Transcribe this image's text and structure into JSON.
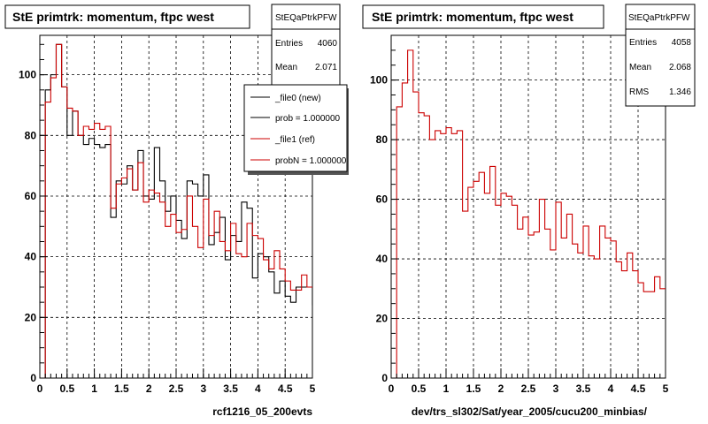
{
  "chart_data": [
    {
      "type": "histogram",
      "title": "StE primtrk: momentum, ftpc west",
      "xlabel": "rcf1216_05_200evts",
      "ylabel": "",
      "xlim": [
        0,
        5
      ],
      "ylim": [
        0,
        113
      ],
      "x_ticks": [
        "0",
        "0.5",
        "1",
        "1.5",
        "2",
        "2.5",
        "3",
        "3.5",
        "4",
        "4.5",
        "5"
      ],
      "y_ticks": [
        "0",
        "20",
        "40",
        "60",
        "80",
        "100"
      ],
      "grid": true,
      "bin_width": 0.1,
      "stats": {
        "name": "StEQaPtrkPFW",
        "entries_label": "Entries",
        "entries": "4060",
        "mean_label": "Mean",
        "mean": "2.071"
      },
      "legend": {
        "placement": "top-right",
        "entries": [
          {
            "label": "_file0 (new)",
            "color": "#000000"
          },
          {
            "label": "prob = 1.000000",
            "color": "#000000"
          },
          {
            "label": "_file1 (ref)",
            "color": "#cc0000"
          },
          {
            "label": "probN = 1.000000",
            "color": "#cc0000"
          }
        ]
      },
      "series": [
        {
          "name": "_file0 (new)",
          "color": "#000000",
          "values": [
            0,
            95,
            100,
            110,
            96,
            80,
            88,
            80,
            77,
            79,
            77,
            76,
            77,
            53,
            65,
            64,
            70,
            62,
            75,
            60,
            59,
            76,
            65,
            55,
            60,
            52,
            46,
            65,
            64,
            60,
            67,
            44,
            48,
            53,
            39,
            47,
            45,
            58,
            56,
            33,
            41,
            40,
            35,
            28,
            32,
            27,
            25,
            30,
            30,
            30,
            24
          ]
        },
        {
          "name": "_file1 (ref)",
          "color": "#cc0000",
          "values": [
            0,
            91,
            99,
            110,
            96,
            89,
            88,
            80,
            83,
            82,
            84,
            82,
            83,
            56,
            64,
            66,
            69,
            62,
            71,
            58,
            62,
            61,
            58,
            50,
            54,
            48,
            49,
            60,
            50,
            43,
            59,
            47,
            55,
            45,
            42,
            51,
            41,
            40,
            51,
            47,
            46,
            39,
            36,
            42,
            36,
            32,
            29,
            29,
            34,
            30,
            30
          ]
        }
      ]
    },
    {
      "type": "histogram",
      "title": "StE primtrk: momentum, ftpc west",
      "xlabel": "dev/trs_sl302/Sat/year_2005/cucu200_minbias/",
      "ylabel": "",
      "xlim": [
        0,
        5
      ],
      "ylim": [
        0,
        115
      ],
      "x_ticks": [
        "0",
        "0.5",
        "1",
        "1.5",
        "2",
        "2.5",
        "3",
        "3.5",
        "4",
        "4.5",
        "5"
      ],
      "y_ticks": [
        "0",
        "20",
        "40",
        "60",
        "80",
        "100"
      ],
      "grid": true,
      "bin_width": 0.1,
      "stats": {
        "name": "StEQaPtrkPFW",
        "entries_label": "Entries",
        "entries": "4058",
        "mean_label": "Mean",
        "mean": "2.068",
        "rms_label": "RMS",
        "rms": "1.346"
      },
      "series": [
        {
          "name": "",
          "color": "#cc0000",
          "values": [
            0,
            91,
            99,
            110,
            96,
            89,
            88,
            80,
            83,
            82,
            84,
            82,
            83,
            56,
            64,
            66,
            69,
            62,
            71,
            58,
            62,
            61,
            58,
            50,
            54,
            48,
            49,
            60,
            50,
            43,
            59,
            47,
            55,
            45,
            42,
            51,
            41,
            40,
            51,
            47,
            46,
            39,
            36,
            42,
            36,
            32,
            29,
            29,
            34,
            30,
            30
          ]
        }
      ]
    }
  ]
}
